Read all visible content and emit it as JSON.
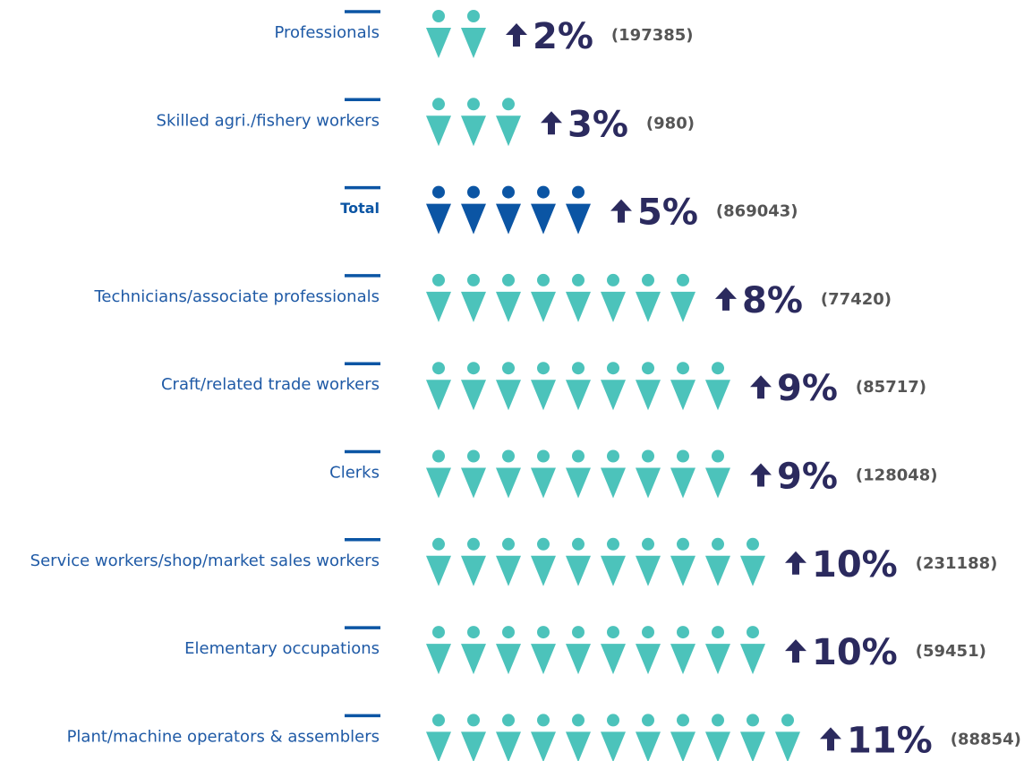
{
  "chart_data": {
    "type": "pictogram",
    "categories": [
      "Professionals",
      "Skilled agri./fishery workers",
      "Total",
      "Technicians/associate professionals",
      "Craft/related trade workers",
      "Clerks",
      "Service workers/shop/market sales workers",
      "Elementary occupations",
      "Plant/machine operators & assemblers"
    ],
    "values": [
      2,
      3,
      5,
      8,
      9,
      9,
      10,
      10,
      11
    ],
    "value_labels": [
      "2%",
      "3%",
      "5%",
      "8%",
      "9%",
      "9%",
      "10%",
      "10%",
      "11%"
    ],
    "counts": [
      197385,
      980,
      869043,
      77420,
      85717,
      128048,
      231188,
      59451,
      88854
    ],
    "count_labels": [
      "(197385)",
      "(980)",
      "(869043)",
      "(77420)",
      "(85717)",
      "(128048)",
      "(231188)",
      "(59451)",
      "(88854)"
    ],
    "color": "#4cc3bb",
    "colors": [
      "#4cc3bb",
      "#4cc3bb",
      "#0b55a4",
      "#4cc3bb",
      "#4cc3bb",
      "#4cc3bb",
      "#4cc3bb",
      "#4cc3bb",
      "#4cc3bb"
    ]
  }
}
